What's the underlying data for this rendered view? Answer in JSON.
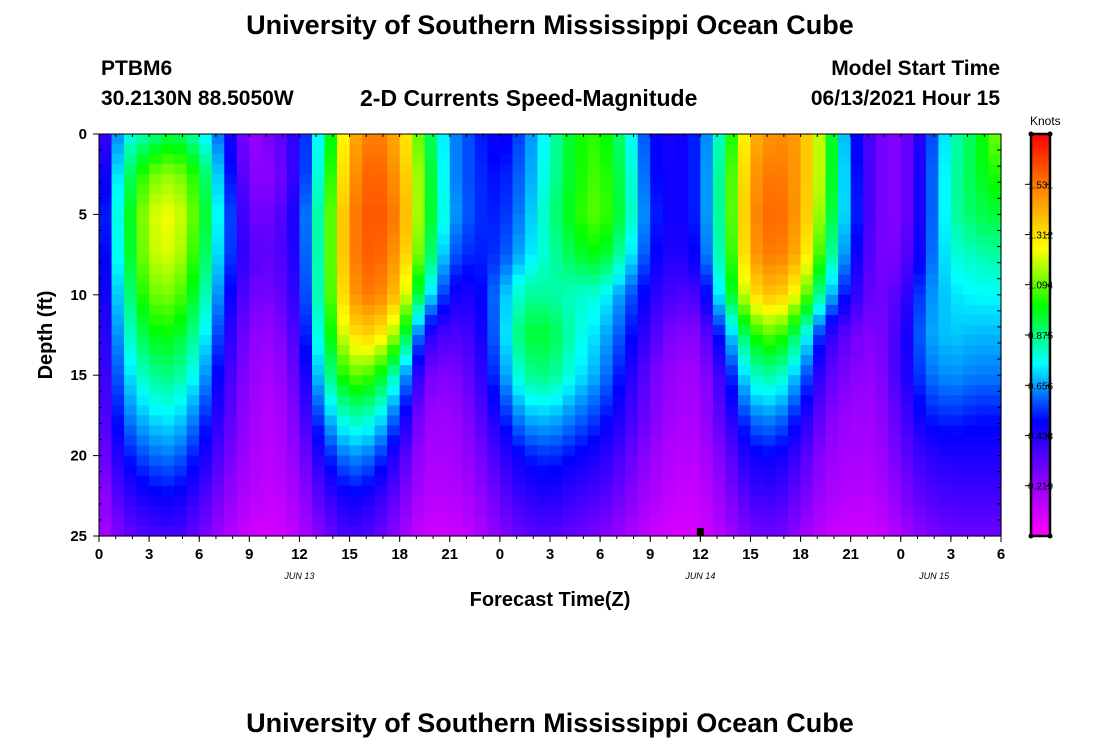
{
  "page": {
    "title_top": "University of Southern Mississippi Ocean Cube",
    "title_bottom": "University of Southern Mississippi Ocean Cube"
  },
  "header": {
    "station_id": "PTBM6",
    "coordinates": "30.2130N  88.5050W",
    "plot_type": "2-D Currents Speed-Magnitude",
    "model_start_label": "Model Start Time",
    "model_start_value": "06/13/2021 Hour 15"
  },
  "chart_data": {
    "type": "heatmap",
    "title": "2-D Currents Speed-Magnitude",
    "xlabel": "Forecast Time(Z)",
    "ylabel": "Depth (ft)",
    "x_tick_labels": [
      "0",
      "3",
      "6",
      "9",
      "12",
      "15",
      "18",
      "21",
      "0",
      "3",
      "6",
      "9",
      "12",
      "15",
      "18",
      "21",
      "0",
      "3",
      "6"
    ],
    "x_range_hours": [
      0,
      54
    ],
    "x_tick_step_hours": 3,
    "date_labels": [
      {
        "text": "JUN 13",
        "hour": 12
      },
      {
        "text": "JUN 14",
        "hour": 36
      },
      {
        "text": "JUN 15",
        "hour": 50
      }
    ],
    "y_ticks": [
      0,
      5,
      10,
      15,
      20,
      25
    ],
    "y_range": [
      0,
      25
    ],
    "y_reversed": true,
    "current_time_marker_hour": 36,
    "colorbar": {
      "label": "Knots",
      "ticks": [
        "0.219",
        "0.438",
        "0.656",
        "0.875",
        "1.094",
        "1.312",
        "1.531"
      ],
      "range": [
        0.0,
        1.75
      ],
      "colors": [
        "#ff00ff",
        "#8800ff",
        "#0000ff",
        "#00ffff",
        "#00ff00",
        "#ffff00",
        "#ff8800",
        "#ff0000"
      ]
    },
    "grid": false,
    "values_depth_rows": [
      0,
      2.5,
      5,
      7.5,
      10,
      12.5,
      15,
      17.5,
      20,
      22.5,
      25
    ],
    "values_time_cols": [
      0,
      1.5,
      3,
      4.5,
      6,
      7.5,
      9,
      10.5,
      12,
      13.5,
      15,
      16.5,
      18,
      19.5,
      21,
      22.5,
      24,
      25.5,
      27,
      28.5,
      30,
      31.5,
      33,
      34.5,
      36,
      37.5,
      39,
      40.5,
      42,
      43.5,
      45,
      46.5,
      48,
      49.5,
      51,
      52.5,
      54
    ],
    "values": [
      [
        0.3,
        0.75,
        0.85,
        0.95,
        0.8,
        0.55,
        0.2,
        0.3,
        0.45,
        0.85,
        1.4,
        1.55,
        1.4,
        1.0,
        0.65,
        0.55,
        0.45,
        0.6,
        0.8,
        1.0,
        1.05,
        0.85,
        0.5,
        0.45,
        0.55,
        0.9,
        1.4,
        1.5,
        1.45,
        1.1,
        0.55,
        0.3,
        0.25,
        0.5,
        0.8,
        0.95,
        1.15
      ],
      [
        0.35,
        0.85,
        1.1,
        1.15,
        1.0,
        0.6,
        0.25,
        0.25,
        0.45,
        0.9,
        1.45,
        1.6,
        1.45,
        1.05,
        0.65,
        0.55,
        0.5,
        0.62,
        0.82,
        1.0,
        1.08,
        0.88,
        0.52,
        0.45,
        0.55,
        0.95,
        1.45,
        1.55,
        1.45,
        1.1,
        0.58,
        0.3,
        0.25,
        0.52,
        0.82,
        0.95,
        1.05
      ],
      [
        0.4,
        0.9,
        1.2,
        1.25,
        1.05,
        0.65,
        0.3,
        0.3,
        0.5,
        0.95,
        1.5,
        1.62,
        1.5,
        1.05,
        0.68,
        0.55,
        0.52,
        0.65,
        0.85,
        1.02,
        1.1,
        0.9,
        0.55,
        0.45,
        0.55,
        0.95,
        1.48,
        1.58,
        1.45,
        1.05,
        0.6,
        0.3,
        0.25,
        0.52,
        0.82,
        0.92,
        0.95
      ],
      [
        0.38,
        0.88,
        1.18,
        1.22,
        1.0,
        0.62,
        0.35,
        0.32,
        0.48,
        0.95,
        1.5,
        1.6,
        1.45,
        1.0,
        0.6,
        0.52,
        0.55,
        0.7,
        0.82,
        0.95,
        1.0,
        0.8,
        0.52,
        0.42,
        0.52,
        0.92,
        1.45,
        1.55,
        1.4,
        0.95,
        0.55,
        0.28,
        0.28,
        0.55,
        0.78,
        0.82,
        0.85
      ],
      [
        0.35,
        0.82,
        1.1,
        1.12,
        0.92,
        0.55,
        0.3,
        0.28,
        0.45,
        0.95,
        1.45,
        1.55,
        1.35,
        0.8,
        0.48,
        0.45,
        0.65,
        0.85,
        0.85,
        0.8,
        0.78,
        0.62,
        0.45,
        0.35,
        0.38,
        0.85,
        1.3,
        1.4,
        1.2,
        0.75,
        0.45,
        0.28,
        0.35,
        0.62,
        0.72,
        0.75,
        0.75
      ],
      [
        0.32,
        0.75,
        0.98,
        1.0,
        0.82,
        0.48,
        0.25,
        0.22,
        0.4,
        0.9,
        1.3,
        1.35,
        1.1,
        0.45,
        0.35,
        0.4,
        0.65,
        0.95,
        0.95,
        0.8,
        0.7,
        0.55,
        0.38,
        0.25,
        0.25,
        0.6,
        1.0,
        1.1,
        0.85,
        0.45,
        0.3,
        0.25,
        0.4,
        0.65,
        0.7,
        0.68,
        0.68
      ],
      [
        0.3,
        0.68,
        0.85,
        0.88,
        0.72,
        0.42,
        0.22,
        0.18,
        0.35,
        0.8,
        1.1,
        1.05,
        0.75,
        0.3,
        0.25,
        0.35,
        0.6,
        0.85,
        0.88,
        0.75,
        0.65,
        0.48,
        0.3,
        0.2,
        0.2,
        0.45,
        0.8,
        0.85,
        0.65,
        0.35,
        0.25,
        0.22,
        0.4,
        0.6,
        0.65,
        0.62,
        0.62
      ],
      [
        0.28,
        0.6,
        0.72,
        0.75,
        0.6,
        0.38,
        0.2,
        0.15,
        0.3,
        0.65,
        0.85,
        0.8,
        0.55,
        0.22,
        0.2,
        0.3,
        0.5,
        0.68,
        0.7,
        0.62,
        0.55,
        0.42,
        0.28,
        0.18,
        0.18,
        0.38,
        0.62,
        0.65,
        0.5,
        0.28,
        0.2,
        0.2,
        0.35,
        0.52,
        0.55,
        0.52,
        0.52
      ],
      [
        0.25,
        0.5,
        0.6,
        0.62,
        0.5,
        0.32,
        0.18,
        0.14,
        0.25,
        0.5,
        0.65,
        0.6,
        0.4,
        0.18,
        0.18,
        0.25,
        0.4,
        0.52,
        0.55,
        0.5,
        0.45,
        0.35,
        0.22,
        0.15,
        0.15,
        0.3,
        0.48,
        0.5,
        0.38,
        0.22,
        0.18,
        0.18,
        0.3,
        0.42,
        0.45,
        0.45,
        0.45
      ],
      [
        0.2,
        0.4,
        0.48,
        0.5,
        0.4,
        0.25,
        0.15,
        0.12,
        0.2,
        0.38,
        0.5,
        0.45,
        0.3,
        0.15,
        0.15,
        0.2,
        0.32,
        0.42,
        0.45,
        0.4,
        0.36,
        0.28,
        0.18,
        0.12,
        0.12,
        0.24,
        0.38,
        0.4,
        0.3,
        0.18,
        0.15,
        0.15,
        0.25,
        0.35,
        0.38,
        0.38,
        0.38
      ],
      [
        0.15,
        0.3,
        0.36,
        0.38,
        0.3,
        0.18,
        0.1,
        0.08,
        0.15,
        0.28,
        0.38,
        0.34,
        0.22,
        0.1,
        0.1,
        0.15,
        0.25,
        0.32,
        0.35,
        0.3,
        0.27,
        0.2,
        0.12,
        0.08,
        0.08,
        0.18,
        0.28,
        0.3,
        0.22,
        0.12,
        0.1,
        0.1,
        0.18,
        0.26,
        0.3,
        0.3,
        0.3
      ]
    ]
  }
}
